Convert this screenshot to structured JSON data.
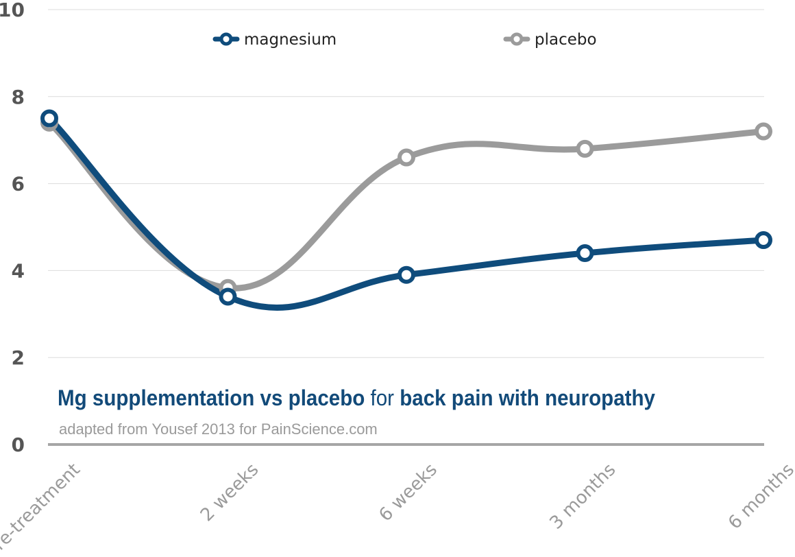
{
  "chart_data": {
    "type": "line",
    "categories": [
      "Pre-treatment",
      "2 weeks",
      "6 weeks",
      "3 months",
      "6 months"
    ],
    "series": [
      {
        "name": "magnesium",
        "values": [
          7.5,
          3.4,
          3.9,
          4.4,
          4.7
        ],
        "color": "#0f4c7c"
      },
      {
        "name": "placebo",
        "values": [
          7.4,
          3.6,
          6.6,
          6.8,
          7.2
        ],
        "color": "#9b9b9b"
      }
    ],
    "ylim": [
      0,
      10
    ],
    "yticks": [
      "0",
      "2",
      "4",
      "6",
      "8",
      "10"
    ],
    "grid": true,
    "legend_position": "top",
    "title_parts": [
      {
        "text": "Mg supplementation vs placebo",
        "bold": true
      },
      {
        "text": " for ",
        "bold": false
      },
      {
        "text": "back pain with neuropathy",
        "bold": true
      }
    ],
    "subtitle": "adapted from Yousef 2013 for PainScience.com",
    "xlabel": "",
    "ylabel": ""
  }
}
